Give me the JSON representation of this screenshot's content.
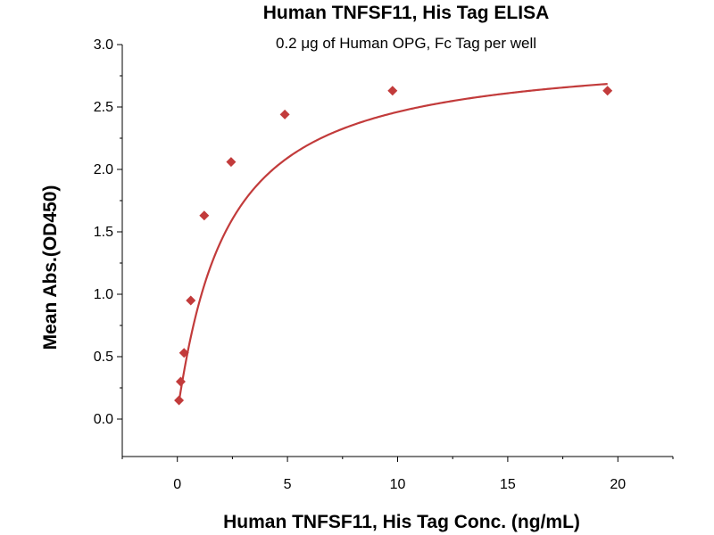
{
  "chart_data": {
    "type": "scatter",
    "title": "Human TNFSF11, His Tag ELISA",
    "subtitle": "0.2 μg of Human OPG, Fc Tag per well",
    "xlabel": "Human TNFSF11, His Tag Conc. (ng/mL)",
    "ylabel": "Mean Abs.(OD450)",
    "xlim": [
      -2.5,
      22.5
    ],
    "ylim": [
      -0.3,
      3.0
    ],
    "x_ticks": [
      0,
      5,
      10,
      15,
      20
    ],
    "y_ticks": [
      0.0,
      0.5,
      1.0,
      1.5,
      2.0,
      2.5,
      3.0
    ],
    "x_tick_labels": [
      "0",
      "5",
      "10",
      "15",
      "20"
    ],
    "y_tick_labels": [
      "0.0",
      "0.5",
      "1.0",
      "1.5",
      "2.0",
      "2.5",
      "3.0"
    ],
    "grid": false,
    "legend": "none",
    "series": [
      {
        "color": "#c23b3b",
        "marker": "diamond",
        "fit": "four-parameter logistic curve",
        "x": [
          0.076,
          0.153,
          0.305,
          0.61,
          1.22,
          2.44,
          4.88,
          9.77,
          19.53
        ],
        "y": [
          0.15,
          0.3,
          0.53,
          0.95,
          1.63,
          2.06,
          2.44,
          2.63,
          2.63
        ]
      }
    ]
  }
}
